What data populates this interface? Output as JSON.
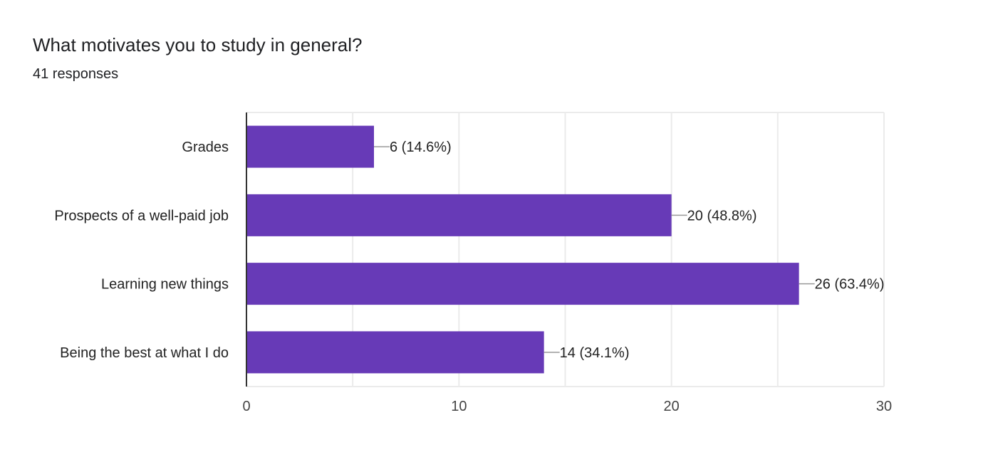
{
  "chart_data": {
    "type": "bar",
    "orientation": "horizontal",
    "title": "What motivates you to study in general?",
    "subtitle": "41 responses",
    "categories": [
      "Grades",
      "Prospects of a well-paid job",
      "Learning new things",
      "Being the best at what I do"
    ],
    "values": [
      6,
      20,
      26,
      14
    ],
    "data_labels": [
      "6 (14.6%)",
      "20 (48.8%)",
      "26 (63.4%)",
      "14 (34.1%)"
    ],
    "xlim": [
      0,
      30
    ],
    "xticks": [
      0,
      10,
      20,
      30
    ],
    "xlabel": "",
    "ylabel": "",
    "grid": true,
    "bar_color": "#673ab7"
  }
}
